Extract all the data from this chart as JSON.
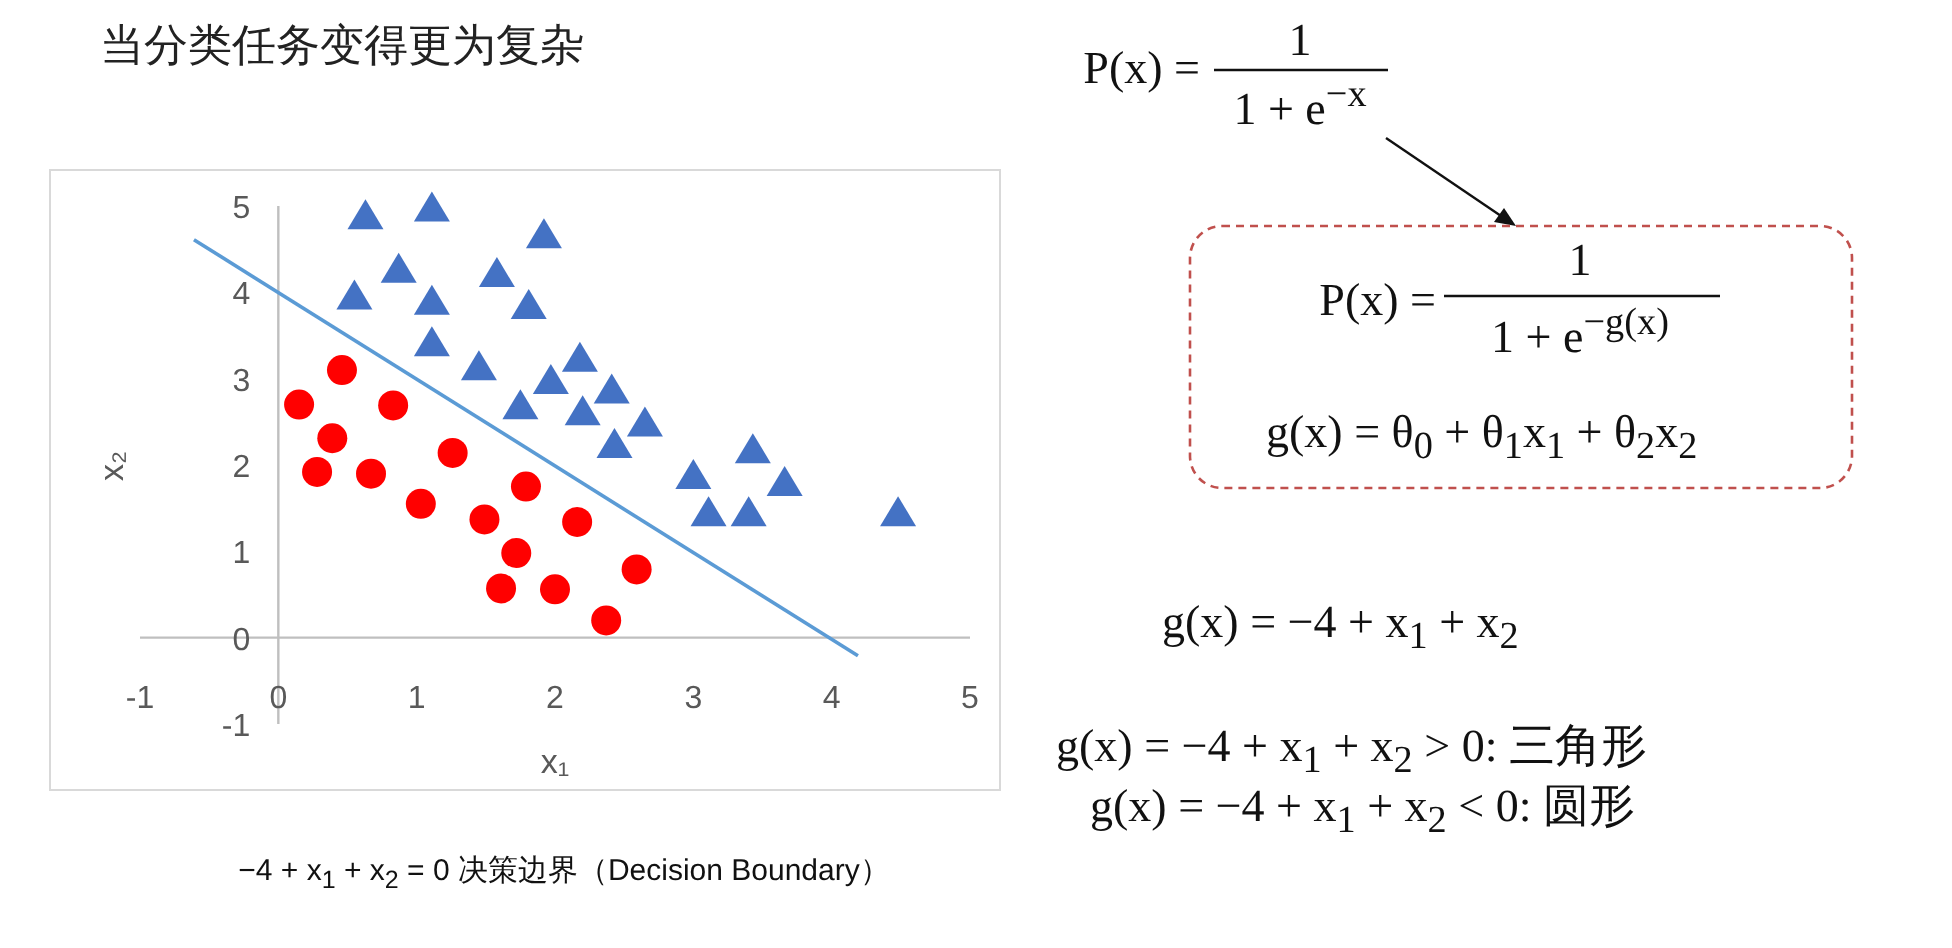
{
  "chart_data": {
    "type": "scatter",
    "title": "当分类任务变得更为复杂",
    "xlabel": "x₁",
    "ylabel": "x₂",
    "xlim": [
      -1,
      5
    ],
    "ylim": [
      -1,
      5
    ],
    "xticks": [
      -1,
      0,
      1,
      2,
      3,
      4,
      5
    ],
    "yticks": [
      -1,
      0,
      1,
      2,
      3,
      4,
      5
    ],
    "series": [
      {
        "type": "scatter",
        "marker": "triangle",
        "color": "#4472c4",
        "x": [
          0.63,
          1.11,
          1.92,
          0.87,
          1.58,
          0.55,
          1.11,
          1.81,
          1.11,
          1.45,
          2.18,
          1.97,
          2.41,
          1.75,
          2.2,
          2.65,
          2.43,
          3.43,
          3.0,
          3.66,
          3.11,
          3.4,
          4.48
        ],
        "values": [
          4.87,
          4.96,
          4.65,
          4.25,
          4.2,
          3.94,
          3.88,
          3.83,
          3.4,
          3.12,
          3.22,
          2.96,
          2.85,
          2.67,
          2.6,
          2.47,
          2.22,
          2.16,
          1.86,
          1.78,
          1.43,
          1.43,
          1.43
        ]
      },
      {
        "type": "scatter",
        "marker": "circle",
        "color": "#ff0000",
        "x": [
          0.46,
          0.15,
          0.83,
          0.39,
          0.28,
          0.67,
          1.26,
          1.03,
          1.79,
          1.49,
          2.16,
          1.72,
          2.59,
          1.61,
          2.0,
          2.37
        ],
        "values": [
          3.1,
          2.7,
          2.69,
          2.31,
          1.92,
          1.9,
          2.14,
          1.55,
          1.75,
          1.37,
          1.34,
          0.98,
          0.79,
          0.57,
          0.56,
          0.2
        ]
      },
      {
        "type": "line",
        "marker": "none",
        "color": "#5b9bd5",
        "x": [
          -0.61,
          4.19
        ],
        "values": [
          4.61,
          -0.21
        ]
      }
    ],
    "annotations": [
      "P(x) =",
      "1",
      "1 + e$^{−x}$",
      "P(x) =",
      "1",
      "1 + e$^{−g(x)}$",
      "g(x) = θ$_{0}$ + θ$_{1}$x$_{1}$ + θ$_{2}$x$_{2}$",
      "g(x) = −4 + x$_{1}$ + x$_{2}$",
      "g(x) = −4 + x$_{1}$ + x$_{2}$ > 0: 三角形",
      "g(x) = −4 + x$_{1}$ + x$_{2}$ < 0: 圆形",
      "−4 + x$_{1}$ + x$_{2}$ = 0 决策边界（Decision Boundary）"
    ]
  }
}
